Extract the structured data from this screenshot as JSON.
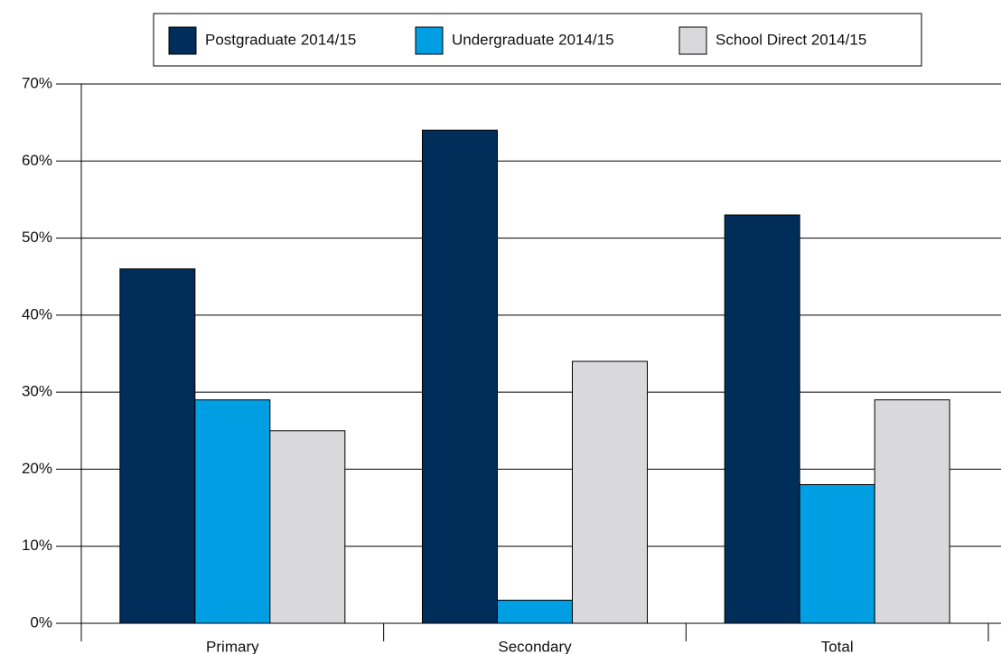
{
  "chart_data": {
    "type": "bar",
    "categories": [
      "Primary",
      "Secondary",
      "Total"
    ],
    "series": [
      {
        "name": "Postgraduate 2014/15",
        "color": "#002d5a",
        "values": [
          46,
          64,
          53
        ]
      },
      {
        "name": "Undergraduate 2014/15",
        "color": "#009fe3",
        "values": [
          29,
          3,
          18
        ]
      },
      {
        "name": "School Direct 2014/15",
        "color": "#d9d9dc",
        "values": [
          25,
          34,
          29
        ]
      }
    ],
    "ylim": [
      0,
      70
    ],
    "yticks": [
      {
        "value": 0,
        "label": "0%"
      },
      {
        "value": 10,
        "label": "10%"
      },
      {
        "value": 20,
        "label": "20%"
      },
      {
        "value": 30,
        "label": "30%"
      },
      {
        "value": 40,
        "label": "40%"
      },
      {
        "value": 50,
        "label": "50%"
      },
      {
        "value": 60,
        "label": "60%"
      },
      {
        "value": 70,
        "label": "70%"
      }
    ],
    "grid": true,
    "legend": "top"
  }
}
